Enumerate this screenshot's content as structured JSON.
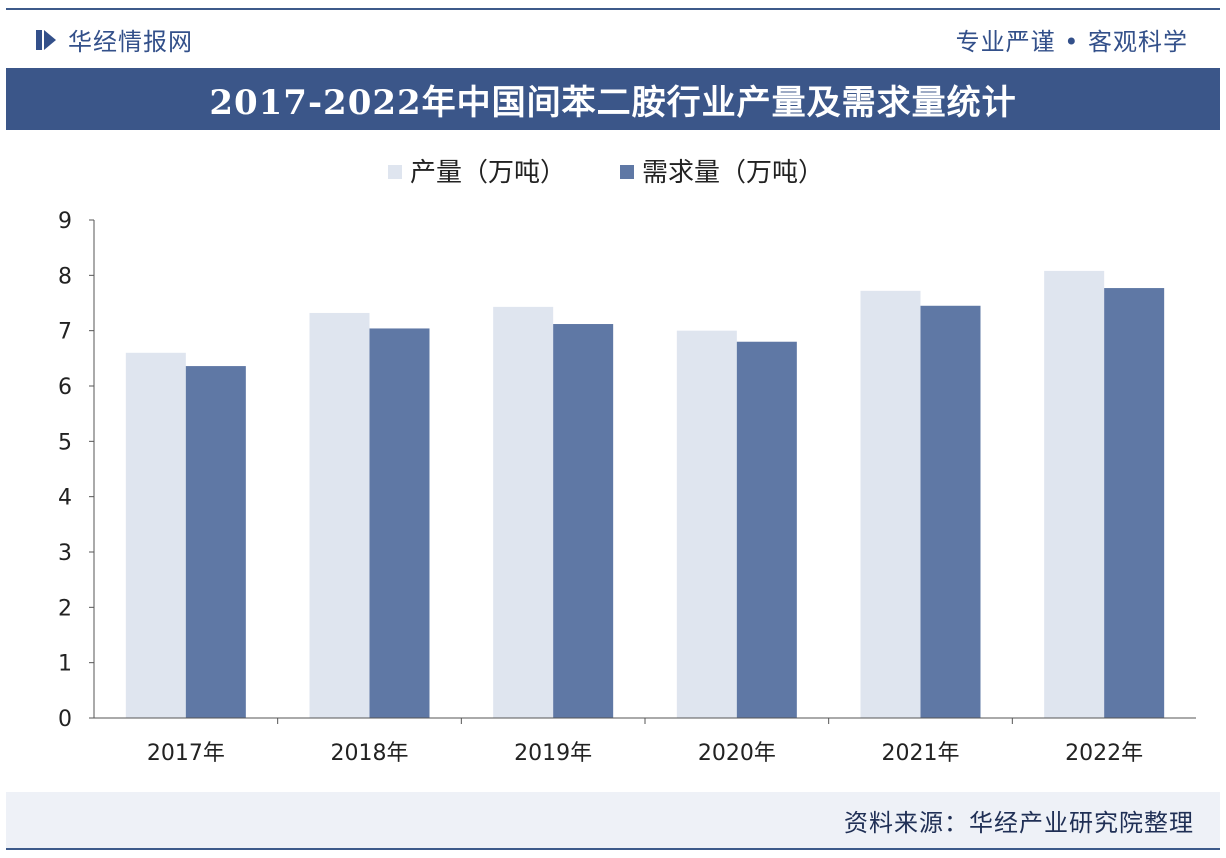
{
  "header": {
    "brand": "华经情报网",
    "slogan": "专业严谨 • 客观科学"
  },
  "chart_data": {
    "type": "bar",
    "title": "2017-2022年中国间苯二胺行业产量及需求量统计",
    "categories": [
      "2017年",
      "2018年",
      "2019年",
      "2020年",
      "2021年",
      "2022年"
    ],
    "series": [
      {
        "name": "产量（万吨）",
        "values": [
          6.6,
          7.32,
          7.43,
          7.0,
          7.72,
          8.08
        ],
        "color": "#dfe5ef"
      },
      {
        "name": "需求量（万吨）",
        "values": [
          6.36,
          7.04,
          7.12,
          6.8,
          7.45,
          7.77
        ],
        "color": "#5f78a5"
      }
    ],
    "y_ticks": [
      "0",
      "1",
      "2",
      "3",
      "4",
      "5",
      "6",
      "7",
      "8",
      "9"
    ],
    "ylim": [
      0,
      9
    ],
    "legend_position": "top-center",
    "grid": false
  },
  "footer": {
    "source": "资料来源：华经产业研究院整理"
  }
}
